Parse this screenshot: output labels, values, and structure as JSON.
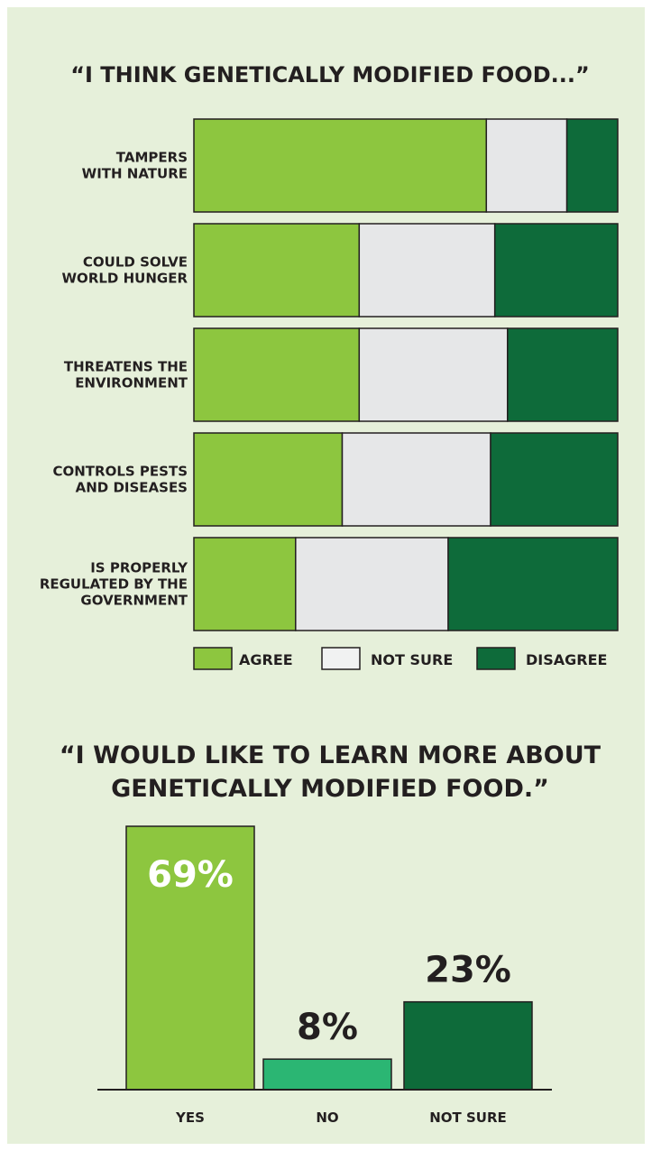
{
  "colors": {
    "agree": "#8dc63f",
    "not_sure": "#e6e7e8",
    "disagree": "#0e6b3a",
    "yes": "#8dc63f",
    "no": "#2bb673",
    "not_sure_bar": "#0e6b3a",
    "outline": "#231f20",
    "background": "#e6f0da"
  },
  "chart_data": [
    {
      "type": "bar",
      "orientation": "horizontal",
      "stacked": true,
      "title": "“I THINK GENETICALLY MODIFIED FOOD...”",
      "categories": [
        [
          "TAMPERS",
          "WITH NATURE"
        ],
        [
          "COULD SOLVE",
          "WORLD HUNGER"
        ],
        [
          "THREATENS THE",
          "ENVIRONMENT"
        ],
        [
          "CONTROLS PESTS",
          "AND DISEASES"
        ],
        [
          "IS PROPERLY",
          "REGULATED BY THE",
          "GOVERNMENT"
        ]
      ],
      "series": [
        {
          "name": "AGREE",
          "values": [
            69,
            39,
            39,
            35,
            24
          ]
        },
        {
          "name": "NOT SURE",
          "values": [
            19,
            32,
            35,
            35,
            36
          ]
        },
        {
          "name": "DISAGREE",
          "values": [
            12,
            29,
            26,
            30,
            40
          ]
        }
      ],
      "xlim": [
        0,
        100
      ],
      "legend_position": "bottom-right"
    },
    {
      "type": "bar",
      "title": "“I WOULD LIKE TO LEARN MORE ABOUT GENETICALLY MODIFIED FOOD.”",
      "title_lines": [
        "“I WOULD LIKE TO LEARN MORE ABOUT",
        "GENETICALLY MODIFIED FOOD.”"
      ],
      "categories": [
        "YES",
        "NO",
        "NOT SURE"
      ],
      "values": [
        69,
        8,
        23
      ],
      "value_labels": [
        "69%",
        "8%",
        "23%"
      ],
      "ylim": [
        0,
        69
      ]
    }
  ]
}
